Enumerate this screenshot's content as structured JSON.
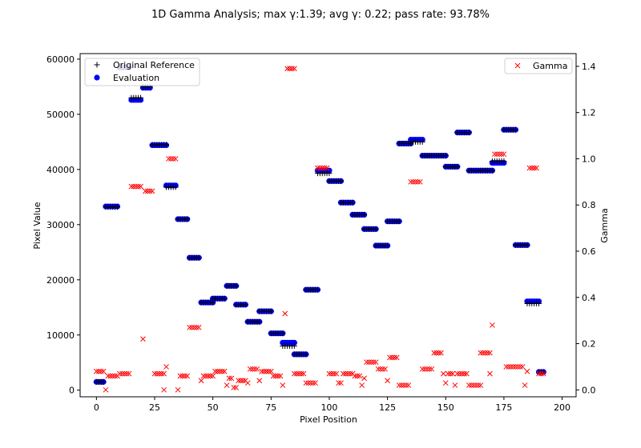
{
  "chart_data": {
    "type": "scatter",
    "title": "1D Gamma Analysis; max γ:1.39; avg γ: 0.22; pass rate: 93.78%",
    "xlabel": "Pixel Position",
    "ylabel_left": "Pixel Value",
    "ylabel_right": "Gamma",
    "xlim": [
      -7,
      206
    ],
    "ylim_left": [
      -1200,
      61000
    ],
    "ylim_right": [
      -0.03,
      1.455
    ],
    "x_ticks": [
      0,
      25,
      50,
      75,
      100,
      125,
      150,
      175,
      200
    ],
    "y_left_ticks": [
      0,
      10000,
      20000,
      30000,
      40000,
      50000,
      60000
    ],
    "y_right_ticks": [
      0.0,
      0.2,
      0.4,
      0.6,
      0.8,
      1.0,
      1.2,
      1.4
    ],
    "grid": false,
    "legend_left_placement": "top-left",
    "legend_right_placement": "top-right",
    "series": [
      {
        "name": "Original Reference",
        "marker": "+",
        "color": "#000000",
        "axis": "left",
        "segments": [
          {
            "x0": 0,
            "x1": 3,
            "y": 1500
          },
          {
            "x0": 4,
            "x1": 9,
            "y": 33200
          },
          {
            "x0": 10,
            "x1": 14,
            "y": 58500
          },
          {
            "x0": 15,
            "x1": 19,
            "y": 53000
          },
          {
            "x0": 20,
            "x1": 23,
            "y": 55000
          },
          {
            "x0": 24,
            "x1": 30,
            "y": 44500
          },
          {
            "x0": 30,
            "x1": 34,
            "y": 36800
          },
          {
            "x0": 35,
            "x1": 39,
            "y": 31000
          },
          {
            "x0": 40,
            "x1": 44,
            "y": 24000
          },
          {
            "x0": 45,
            "x1": 50,
            "y": 15900
          },
          {
            "x0": 50,
            "x1": 55,
            "y": 16600
          },
          {
            "x0": 56,
            "x1": 60,
            "y": 18900
          },
          {
            "x0": 60,
            "x1": 64,
            "y": 15500
          },
          {
            "x0": 65,
            "x1": 70,
            "y": 12400
          },
          {
            "x0": 70,
            "x1": 75,
            "y": 14300
          },
          {
            "x0": 75,
            "x1": 80,
            "y": 10300
          },
          {
            "x0": 80,
            "x1": 85,
            "y": 8000
          },
          {
            "x0": 85,
            "x1": 90,
            "y": 6500
          },
          {
            "x0": 90,
            "x1": 95,
            "y": 18200
          },
          {
            "x0": 95,
            "x1": 100,
            "y": 39300
          },
          {
            "x0": 100,
            "x1": 105,
            "y": 37900
          },
          {
            "x0": 105,
            "x1": 110,
            "y": 34000
          },
          {
            "x0": 110,
            "x1": 115,
            "y": 31800
          },
          {
            "x0": 115,
            "x1": 120,
            "y": 29200
          },
          {
            "x0": 120,
            "x1": 125,
            "y": 26200
          },
          {
            "x0": 125,
            "x1": 130,
            "y": 30600
          },
          {
            "x0": 130,
            "x1": 135,
            "y": 44700
          },
          {
            "x0": 135,
            "x1": 140,
            "y": 45000
          },
          {
            "x0": 140,
            "x1": 150,
            "y": 42500
          },
          {
            "x0": 150,
            "x1": 155,
            "y": 40500
          },
          {
            "x0": 155,
            "x1": 160,
            "y": 46700
          },
          {
            "x0": 160,
            "x1": 170,
            "y": 39800
          },
          {
            "x0": 170,
            "x1": 175,
            "y": 41500
          },
          {
            "x0": 175,
            "x1": 180,
            "y": 47200
          },
          {
            "x0": 180,
            "x1": 185,
            "y": 26300
          },
          {
            "x0": 185,
            "x1": 190,
            "y": 15700
          },
          {
            "x0": 190,
            "x1": 192,
            "y": 3300
          }
        ]
      },
      {
        "name": "Evaluation",
        "marker": "o",
        "color": "#0000ff",
        "axis": "left",
        "segments": [
          {
            "x0": 0,
            "x1": 3,
            "y": 1500
          },
          {
            "x0": 4,
            "x1": 9,
            "y": 33300
          },
          {
            "x0": 10,
            "x1": 14,
            "y": 58500
          },
          {
            "x0": 15,
            "x1": 19,
            "y": 52600
          },
          {
            "x0": 20,
            "x1": 23,
            "y": 54800
          },
          {
            "x0": 24,
            "x1": 30,
            "y": 44400
          },
          {
            "x0": 30,
            "x1": 34,
            "y": 37100
          },
          {
            "x0": 35,
            "x1": 39,
            "y": 31000
          },
          {
            "x0": 40,
            "x1": 44,
            "y": 24000
          },
          {
            "x0": 45,
            "x1": 50,
            "y": 15900
          },
          {
            "x0": 50,
            "x1": 55,
            "y": 16600
          },
          {
            "x0": 56,
            "x1": 60,
            "y": 18900
          },
          {
            "x0": 60,
            "x1": 64,
            "y": 15500
          },
          {
            "x0": 65,
            "x1": 70,
            "y": 12400
          },
          {
            "x0": 70,
            "x1": 75,
            "y": 14300
          },
          {
            "x0": 75,
            "x1": 80,
            "y": 10300
          },
          {
            "x0": 80,
            "x1": 85,
            "y": 8600
          },
          {
            "x0": 85,
            "x1": 90,
            "y": 6500
          },
          {
            "x0": 90,
            "x1": 95,
            "y": 18200
          },
          {
            "x0": 95,
            "x1": 100,
            "y": 39800
          },
          {
            "x0": 100,
            "x1": 105,
            "y": 37900
          },
          {
            "x0": 105,
            "x1": 110,
            "y": 34000
          },
          {
            "x0": 110,
            "x1": 115,
            "y": 31800
          },
          {
            "x0": 115,
            "x1": 120,
            "y": 29200
          },
          {
            "x0": 120,
            "x1": 125,
            "y": 26200
          },
          {
            "x0": 125,
            "x1": 130,
            "y": 30600
          },
          {
            "x0": 130,
            "x1": 135,
            "y": 44700
          },
          {
            "x0": 135,
            "x1": 140,
            "y": 45400
          },
          {
            "x0": 140,
            "x1": 150,
            "y": 42500
          },
          {
            "x0": 150,
            "x1": 155,
            "y": 40500
          },
          {
            "x0": 155,
            "x1": 160,
            "y": 46700
          },
          {
            "x0": 160,
            "x1": 170,
            "y": 39800
          },
          {
            "x0": 170,
            "x1": 175,
            "y": 41200
          },
          {
            "x0": 175,
            "x1": 180,
            "y": 47200
          },
          {
            "x0": 180,
            "x1": 185,
            "y": 26300
          },
          {
            "x0": 185,
            "x1": 190,
            "y": 16100
          },
          {
            "x0": 190,
            "x1": 192,
            "y": 3300
          }
        ]
      },
      {
        "name": "Gamma",
        "marker": "x",
        "color": "#ff0000",
        "axis": "right",
        "segments": [
          {
            "x0": 0,
            "x1": 3,
            "y": 0.08
          },
          {
            "x0": 4,
            "x1": 4,
            "y": 0.0
          },
          {
            "x0": 5,
            "x1": 9,
            "y": 0.06
          },
          {
            "x0": 10,
            "x1": 14,
            "y": 0.07
          },
          {
            "x0": 15,
            "x1": 19,
            "y": 0.88
          },
          {
            "x0": 20,
            "x1": 20,
            "y": 0.22
          },
          {
            "x0": 21,
            "x1": 24,
            "y": 0.86
          },
          {
            "x0": 25,
            "x1": 29,
            "y": 0.07
          },
          {
            "x0": 29,
            "x1": 29,
            "y": 0.0
          },
          {
            "x0": 30,
            "x1": 30,
            "y": 0.1
          },
          {
            "x0": 31,
            "x1": 34,
            "y": 1.0
          },
          {
            "x0": 35,
            "x1": 35,
            "y": 0.0
          },
          {
            "x0": 36,
            "x1": 39,
            "y": 0.06
          },
          {
            "x0": 40,
            "x1": 44,
            "y": 0.27
          },
          {
            "x0": 45,
            "x1": 45,
            "y": 0.04
          },
          {
            "x0": 46,
            "x1": 50,
            "y": 0.06
          },
          {
            "x0": 51,
            "x1": 55,
            "y": 0.08
          },
          {
            "x0": 56,
            "x1": 56,
            "y": 0.02
          },
          {
            "x0": 57,
            "x1": 58,
            "y": 0.05
          },
          {
            "x0": 59,
            "x1": 60,
            "y": 0.01
          },
          {
            "x0": 61,
            "x1": 64,
            "y": 0.04
          },
          {
            "x0": 65,
            "x1": 65,
            "y": 0.03
          },
          {
            "x0": 66,
            "x1": 69,
            "y": 0.09
          },
          {
            "x0": 70,
            "x1": 70,
            "y": 0.04
          },
          {
            "x0": 71,
            "x1": 75,
            "y": 0.08
          },
          {
            "x0": 76,
            "x1": 79,
            "y": 0.06
          },
          {
            "x0": 80,
            "x1": 80,
            "y": 0.02
          },
          {
            "x0": 81,
            "x1": 81,
            "y": 0.33
          },
          {
            "x0": 82,
            "x1": 85,
            "y": 1.39
          },
          {
            "x0": 85,
            "x1": 89,
            "y": 0.07
          },
          {
            "x0": 90,
            "x1": 94,
            "y": 0.03
          },
          {
            "x0": 95,
            "x1": 99,
            "y": 0.96
          },
          {
            "x0": 100,
            "x1": 103,
            "y": 0.07
          },
          {
            "x0": 104,
            "x1": 105,
            "y": 0.03
          },
          {
            "x0": 106,
            "x1": 110,
            "y": 0.07
          },
          {
            "x0": 111,
            "x1": 113,
            "y": 0.06
          },
          {
            "x0": 114,
            "x1": 114,
            "y": 0.02
          },
          {
            "x0": 115,
            "x1": 115,
            "y": 0.05
          },
          {
            "x0": 116,
            "x1": 120,
            "y": 0.12
          },
          {
            "x0": 121,
            "x1": 124,
            "y": 0.09
          },
          {
            "x0": 125,
            "x1": 125,
            "y": 0.04
          },
          {
            "x0": 126,
            "x1": 129,
            "y": 0.14
          },
          {
            "x0": 130,
            "x1": 134,
            "y": 0.02
          },
          {
            "x0": 135,
            "x1": 139,
            "y": 0.9
          },
          {
            "x0": 140,
            "x1": 144,
            "y": 0.09
          },
          {
            "x0": 145,
            "x1": 148,
            "y": 0.16
          },
          {
            "x0": 149,
            "x1": 149,
            "y": 0.07
          },
          {
            "x0": 150,
            "x1": 150,
            "y": 0.03
          },
          {
            "x0": 151,
            "x1": 153,
            "y": 0.07
          },
          {
            "x0": 154,
            "x1": 154,
            "y": 0.02
          },
          {
            "x0": 155,
            "x1": 159,
            "y": 0.07
          },
          {
            "x0": 160,
            "x1": 165,
            "y": 0.02
          },
          {
            "x0": 165,
            "x1": 169,
            "y": 0.16
          },
          {
            "x0": 169,
            "x1": 169,
            "y": 0.07
          },
          {
            "x0": 170,
            "x1": 170,
            "y": 0.28
          },
          {
            "x0": 171,
            "x1": 175,
            "y": 1.02
          },
          {
            "x0": 176,
            "x1": 183,
            "y": 0.1
          },
          {
            "x0": 184,
            "x1": 184,
            "y": 0.02
          },
          {
            "x0": 185,
            "x1": 185,
            "y": 0.08
          },
          {
            "x0": 186,
            "x1": 189,
            "y": 0.96
          },
          {
            "x0": 190,
            "x1": 192,
            "y": 0.07
          }
        ]
      }
    ]
  }
}
